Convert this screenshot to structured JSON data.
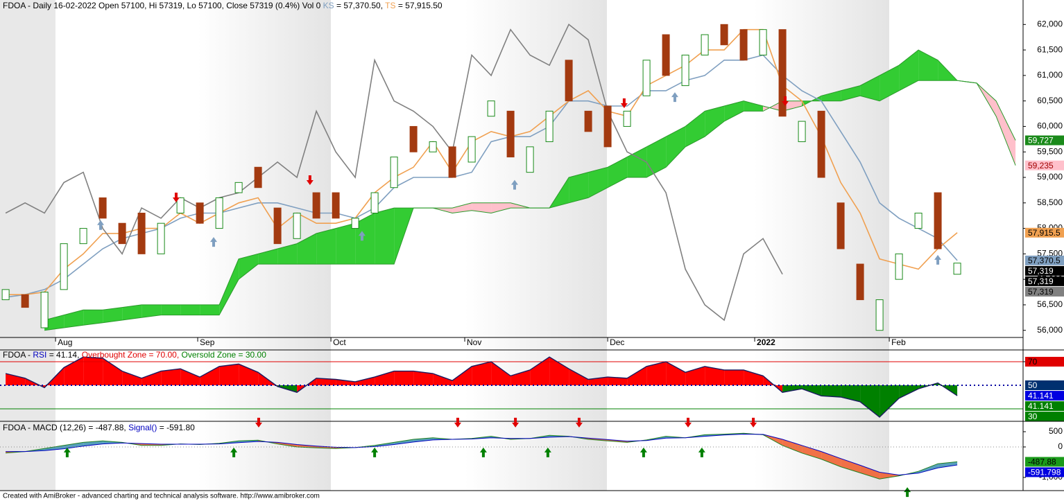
{
  "chart_data": [
    {
      "type": "candlestick",
      "title_parts": [
        {
          "text": "FDOA - Daily 16-02-2022 Open 57100, Hi 57319, Lo 57100, Close 57319 (0.4%) Vol 0 ",
          "color": "#000000"
        },
        {
          "text": "KS",
          "color": "#7f9fc0"
        },
        {
          "text": " = 57,370.50, ",
          "color": "#000000"
        },
        {
          "text": "TS",
          "color": "#f0a050"
        },
        {
          "text": " = 57,915.50",
          "color": "#000000"
        }
      ],
      "open": [
        56600,
        56700,
        56050,
        56800,
        57700,
        58600,
        58100,
        58300,
        57500,
        58300,
        58500,
        58000,
        58700,
        59200,
        58400,
        57800,
        58700,
        58700,
        58000,
        58300,
        58800,
        60000,
        59500,
        59600,
        59300,
        60200,
        60300,
        59100,
        59700,
        61300,
        60300,
        60400,
        60000,
        60600,
        61800,
        60800,
        61400,
        62000,
        61900,
        61400,
        61900,
        59700,
        60300,
        58500,
        57300,
        56000,
        57000,
        58000,
        58700,
        57100
      ],
      "close": [
        56800,
        56450,
        56750,
        57700,
        58000,
        58200,
        57700,
        57500,
        58100,
        58600,
        58100,
        58600,
        58900,
        58800,
        57700,
        58300,
        58200,
        58200,
        58200,
        58700,
        59400,
        59500,
        59700,
        59000,
        59800,
        60500,
        59400,
        59600,
        60300,
        60500,
        59900,
        59600,
        60300,
        61300,
        61000,
        61400,
        61800,
        61600,
        61300,
        61900,
        60200,
        60100,
        59000,
        57600,
        56600,
        56600,
        57500,
        58300,
        57600,
        57319
      ],
      "up_color": "#1a8a1a",
      "down_color": "#a33a10",
      "lines": [
        {
          "color": "#7f9fc0",
          "values": [
            56650,
            56700,
            56800,
            57000,
            57300,
            57600,
            57800,
            57900,
            58000,
            58200,
            58300,
            58300,
            58400,
            58500,
            58500,
            58400,
            58300,
            58300,
            58200,
            58400,
            58800,
            59000,
            59000,
            59000,
            59100,
            59700,
            59800,
            59800,
            60000,
            60500,
            60500,
            60400,
            60400,
            60700,
            60700,
            60900,
            61000,
            61300,
            61300,
            61400,
            61000,
            60700,
            60500,
            59900,
            59300,
            58500,
            58200,
            58000,
            57800,
            57370.5
          ]
        },
        {
          "color": "#f0a050",
          "values": [
            56700,
            56700,
            56750,
            57200,
            57500,
            57900,
            57900,
            58000,
            58000,
            58300,
            58100,
            58300,
            58500,
            58600,
            58000,
            58300,
            58100,
            58100,
            58200,
            58700,
            59000,
            59200,
            59700,
            59100,
            59700,
            59900,
            59800,
            59900,
            60200,
            60500,
            60700,
            60300,
            60200,
            60800,
            61000,
            61200,
            61500,
            61500,
            61900,
            61900,
            60800,
            60500,
            59800,
            58900,
            58300,
            57400,
            57300,
            57200,
            57600,
            57915.5
          ]
        },
        {
          "color": "#808080",
          "values": [
            58300,
            58500,
            58300,
            58900,
            59100,
            58000,
            57500,
            58400,
            58200,
            58600,
            58400,
            58600,
            58700,
            59000,
            59300,
            59000,
            60300,
            59500,
            59000,
            61300,
            60500,
            60300,
            60000,
            59500,
            61400,
            61000,
            61900,
            61400,
            61200,
            62000,
            61700,
            60300,
            59500,
            59300,
            58700,
            57200,
            56500,
            56200,
            57500,
            57800,
            57100,
            null,
            null,
            null,
            null,
            null,
            null,
            null,
            null,
            null
          ]
        }
      ],
      "span_a": [
        null,
        null,
        56200,
        56300,
        56400,
        56400,
        56450,
        56500,
        56500,
        56500,
        56500,
        56500,
        57400,
        57500,
        57600,
        57700,
        57900,
        58000,
        58100,
        58300,
        58400,
        58400,
        58400,
        58300,
        58350,
        58300,
        58400,
        58400,
        58400,
        59000,
        59100,
        59200,
        59400,
        59600,
        59800,
        60000,
        60300,
        60400,
        60500,
        60400,
        60300,
        60400,
        60600,
        60700,
        60800,
        61000,
        61200,
        61500,
        61300,
        60900,
        60850,
        60200,
        59235
      ],
      "span_b": [
        null,
        null,
        56000,
        56050,
        56100,
        56150,
        56200,
        56250,
        56300,
        56300,
        56300,
        56300,
        57000,
        57300,
        57300,
        57300,
        57300,
        57300,
        57300,
        57300,
        57300,
        58400,
        58400,
        58400,
        58500,
        58500,
        58500,
        58400,
        58400,
        58500,
        58600,
        58800,
        59000,
        59000,
        59200,
        59600,
        59800,
        60100,
        60300,
        60300,
        60500,
        60500,
        60500,
        60500,
        60600,
        60500,
        60700,
        60900,
        60900,
        60900,
        60850,
        60500,
        59727
      ],
      "cloud_up_color": "#33cc33",
      "cloud_down_color": "#ffc0cb",
      "signals": [
        {
          "x": 4.89,
          "y": 58160,
          "dir": "up",
          "color": "#7f9fc0"
        },
        {
          "x": 10.71,
          "y": 57830,
          "dir": "up",
          "color": "#7f9fc0"
        },
        {
          "x": 18.35,
          "y": 57950,
          "dir": "up",
          "color": "#7f9fc0"
        },
        {
          "x": 26.21,
          "y": 58950,
          "dir": "up",
          "color": "#7f9fc0"
        },
        {
          "x": 34.46,
          "y": 60670,
          "dir": "up",
          "color": "#7f9fc0"
        },
        {
          "x": 48.0,
          "y": 57480,
          "dir": "up",
          "color": "#7f9fc0"
        },
        {
          "x": 8.78,
          "y": 58510,
          "dir": "down",
          "color": "#e00000"
        },
        {
          "x": 15.67,
          "y": 58850,
          "dir": "down",
          "color": "#e00000"
        },
        {
          "x": 31.85,
          "y": 60360,
          "dir": "down",
          "color": "#e00000"
        },
        {
          "x": 40.14,
          "y": 60400,
          "dir": "down",
          "color": "#e00000"
        }
      ],
      "xlim": [
        -0.29,
        52.39
      ],
      "xticks": [
        {
          "value": 2.57,
          "label": "Aug"
        },
        {
          "value": 9.89,
          "label": "Sep"
        },
        {
          "value": 16.75,
          "label": "Oct"
        },
        {
          "value": 23.64,
          "label": "Nov"
        },
        {
          "value": 31.0,
          "label": "Dec"
        },
        {
          "value": 38.57,
          "label": "2022",
          "bold": true
        },
        {
          "value": 45.5,
          "label": "Feb"
        }
      ],
      "ylim": [
        55860,
        62480
      ],
      "yticks": [
        {
          "value": 56000,
          "label": "56,000"
        },
        {
          "value": 56500,
          "label": "56,500"
        },
        {
          "value": 57000,
          "label": "57,000"
        },
        {
          "value": 57500,
          "label": "57,500"
        },
        {
          "value": 58000,
          "label": "58,000"
        },
        {
          "value": 58500,
          "label": "58,500"
        },
        {
          "value": 59000,
          "label": "59,000"
        },
        {
          "value": 59500,
          "label": "59,500"
        },
        {
          "value": 60000,
          "label": "60,000"
        },
        {
          "value": 60500,
          "label": "60,500"
        },
        {
          "value": 61000,
          "label": "61,000"
        },
        {
          "value": 61500,
          "label": "61,500"
        },
        {
          "value": 62000,
          "label": "62,000"
        }
      ],
      "value_boxes": [
        {
          "value": 59727,
          "label": "59,727",
          "color": "#1a8a1a",
          "text_color": "#ffffff"
        },
        {
          "value": 59235,
          "label": "59,235",
          "color": "#ffc0cb",
          "text_color": "#a00000"
        },
        {
          "value": 57915.5,
          "label": "57,915.5",
          "color": "#f0a050",
          "text_color": "#000000"
        },
        {
          "value": 57370.5,
          "label": "57,370.5",
          "color": "#7f9fc0",
          "text_color": "#000000"
        },
        {
          "value": 57319,
          "label": "57,319",
          "color": "#000000",
          "text_color": "#ffffff"
        },
        {
          "value": 57319,
          "label": "57,319",
          "color": "#000000",
          "text_color": "#ffffff"
        },
        {
          "value": 57319,
          "label": "57,319",
          "color": "#808080",
          "text_color": "#000000"
        }
      ]
    },
    {
      "type": "rsi",
      "title_parts": [
        {
          "text": "FDOA - ",
          "color": "#000000"
        },
        {
          "text": "RSI",
          "color": "#0000c0"
        },
        {
          "text": " = 41.14, ",
          "color": "#000000"
        },
        {
          "text": "Overbought Zone = 70.00, ",
          "color": "#e00000"
        },
        {
          "text": "Oversold Zone = 30.00",
          "color": "#008000"
        }
      ],
      "values": [
        60,
        56,
        48,
        65,
        74,
        73,
        62,
        56,
        62,
        64,
        57,
        66,
        68,
        61,
        49,
        44,
        56,
        55,
        53,
        57,
        62,
        62,
        60,
        54,
        66,
        70,
        58,
        63,
        74,
        64,
        55,
        57,
        56,
        66,
        70,
        61,
        66,
        63,
        63,
        58,
        44,
        47,
        41,
        40,
        36,
        23,
        39,
        47,
        52,
        41.141
      ],
      "line_color": "#1a1a60",
      "above_color": "#ff0000",
      "below_color": "#008000",
      "levels": [
        {
          "value": 70,
          "color": "#e00000"
        },
        {
          "value": 50,
          "color": "#0000a0",
          "dotted": true
        },
        {
          "value": 30,
          "color": "#008000"
        }
      ],
      "xlim": [
        -0.29,
        52.39
      ],
      "ylim": [
        21.2,
        78.8
      ],
      "yticks": [
        70
      ],
      "value_boxes": [
        {
          "value": 70,
          "label": "70",
          "color": "#e00000",
          "text_color": "#000000"
        },
        {
          "value": 50,
          "label": "50",
          "color": "#003070",
          "text_color": "#ffffff"
        },
        {
          "value": 41.141,
          "label": "41.141",
          "color": "#0000e0",
          "text_color": "#ffffff"
        },
        {
          "value": 41.141,
          "label": "41.141",
          "color": "#008000",
          "text_color": "#ffffff"
        },
        {
          "value": 30,
          "label": "30",
          "color": "#008000",
          "text_color": "#ffffff"
        }
      ]
    },
    {
      "type": "macd",
      "title_parts": [
        {
          "text": "FDOA - MACD (12,26) = -487.88, ",
          "color": "#000000"
        },
        {
          "text": "Signal()",
          "color": "#0000c0"
        },
        {
          "text": " = -591.80",
          "color": "#000000"
        }
      ],
      "series": [
        {
          "color": "#208020",
          "values": [
            -200,
            -150,
            -50,
            50,
            150,
            200,
            150,
            50,
            50,
            100,
            80,
            120,
            200,
            220,
            100,
            0,
            -30,
            -50,
            -20,
            50,
            150,
            250,
            300,
            250,
            280,
            350,
            250,
            280,
            380,
            350,
            250,
            200,
            150,
            230,
            350,
            300,
            400,
            420,
            450,
            400,
            50,
            -200,
            -400,
            -650,
            -850,
            -1050,
            -950,
            -800,
            -550,
            -487.88
          ]
        },
        {
          "color": "#0000c0",
          "values": [
            -150,
            -150,
            -120,
            -60,
            30,
            100,
            130,
            110,
            90,
            90,
            90,
            100,
            140,
            180,
            150,
            80,
            30,
            -10,
            -20,
            10,
            80,
            160,
            230,
            250,
            260,
            300,
            280,
            280,
            320,
            340,
            290,
            240,
            190,
            210,
            290,
            300,
            350,
            390,
            420,
            410,
            250,
            50,
            -150,
            -380,
            -600,
            -830,
            -920,
            -860,
            -690,
            -591.8
          ]
        }
      ],
      "above_color": "#3a8fb0",
      "below_color": "#f05a28",
      "signals": [
        {
          "x": 13.03,
          "y": 640,
          "dir": "down",
          "color": "#e00000"
        },
        {
          "x": 23.28,
          "y": 640,
          "dir": "down",
          "color": "#e00000"
        },
        {
          "x": 26.25,
          "y": 640,
          "dir": "down",
          "color": "#e00000"
        },
        {
          "x": 29.53,
          "y": 640,
          "dir": "down",
          "color": "#e00000"
        },
        {
          "x": 35.14,
          "y": 640,
          "dir": "down",
          "color": "#e00000"
        },
        {
          "x": 38.5,
          "y": 640,
          "dir": "down",
          "color": "#e00000"
        },
        {
          "x": 3.17,
          "y": -20,
          "dir": "up",
          "color": "#008000"
        },
        {
          "x": 11.75,
          "y": -20,
          "dir": "up",
          "color": "#008000"
        },
        {
          "x": 19.0,
          "y": -20,
          "dir": "up",
          "color": "#008000"
        },
        {
          "x": 24.6,
          "y": -20,
          "dir": "up",
          "color": "#008000"
        },
        {
          "x": 27.92,
          "y": -20,
          "dir": "up",
          "color": "#008000"
        },
        {
          "x": 32.85,
          "y": -20,
          "dir": "up",
          "color": "#008000"
        },
        {
          "x": 35.85,
          "y": -20,
          "dir": "up",
          "color": "#008000"
        },
        {
          "x": 46.43,
          "y": -1320,
          "dir": "up",
          "color": "#008000"
        }
      ],
      "xlim": [
        -0.29,
        52.39
      ],
      "ylim": [
        -1364,
        795
      ],
      "yticks": [
        500,
        0,
        {
          "value": -1000,
          "label": "-1,000"
        }
      ],
      "value_boxes": [
        {
          "value": -487.88,
          "label": "-487.88",
          "color": "#1a9a1a",
          "text_color": "#000000"
        },
        {
          "value": -591.798,
          "label": "-591.798",
          "color": "#0000e0",
          "text_color": "#ffffff"
        }
      ]
    }
  ],
  "footer": "Created with AmiBroker - advanced charting and technical analysis software. http://www.amibroker.com"
}
